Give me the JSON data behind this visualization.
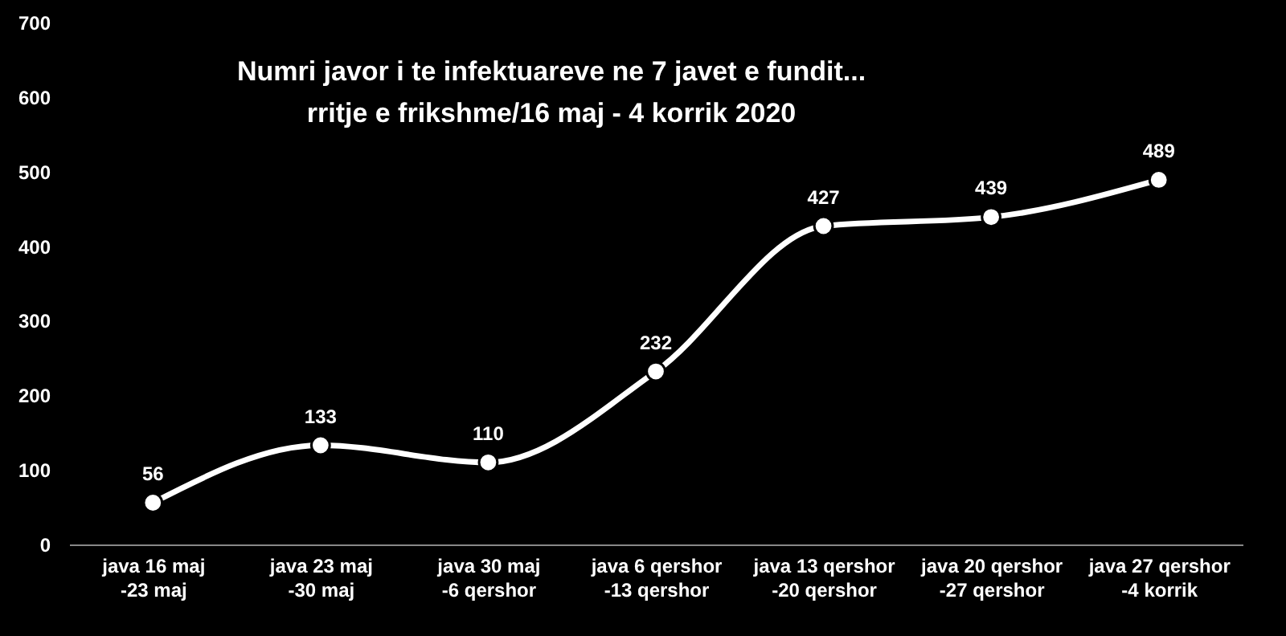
{
  "chart_data": {
    "type": "line",
    "title": "Numri javor i te infektuareve ne 7 javet e fundit...\nrritje e frikshme/16 maj - 4 korrik 2020",
    "categories": [
      "java 16 maj\n-23 maj",
      "java 23 maj\n-30 maj",
      "java 30 maj\n-6 qershor",
      "java 6 qershor\n-13 qershor",
      "java 13 qershor\n-20 qershor",
      "java 20 qershor\n-27 qershor",
      "java 27 qershor\n-4 korrik"
    ],
    "series": [
      {
        "color": "#ffffff",
        "values": [
          56,
          133,
          110,
          232,
          427,
          439,
          489
        ]
      }
    ],
    "ylim": [
      0,
      700
    ],
    "yticks": [
      0,
      100,
      200,
      300,
      400,
      500,
      600,
      700
    ],
    "grid": false,
    "legend": false,
    "marker": "circle",
    "line_style": "solid",
    "data_labels": true
  }
}
